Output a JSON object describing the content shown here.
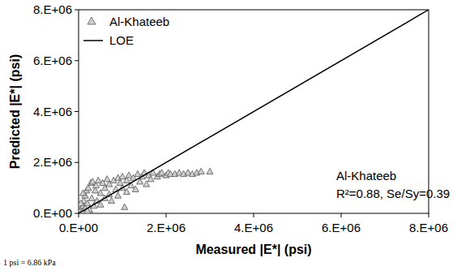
{
  "chart_data": {
    "type": "scatter",
    "x_label": "Measured |E*| (psi)",
    "y_label": "Predicted |E*| (psi)",
    "annotations": [
      "Al-Khateeb",
      "R²=0.88, Se/Sy=0.39"
    ],
    "footnote": "1 psi = 6.86 kPa",
    "xlim": [
      0,
      8000000
    ],
    "ylim": [
      0,
      8000000
    ],
    "xticks": [
      {
        "value": 0,
        "label": "0.E+00"
      },
      {
        "value": 2000000,
        "label": "2.E+06"
      },
      {
        "value": 4000000,
        "label": "4.E+06"
      },
      {
        "value": 6000000,
        "label": "6.E+06"
      },
      {
        "value": 8000000,
        "label": "8.E+06"
      }
    ],
    "yticks": [
      {
        "value": 0,
        "label": "0.E+00"
      },
      {
        "value": 2000000,
        "label": "2.E+06"
      },
      {
        "value": 4000000,
        "label": "4.E+06"
      },
      {
        "value": 6000000,
        "label": "6.E+06"
      },
      {
        "value": 8000000,
        "label": "8.E+06"
      }
    ],
    "grid": false,
    "legend": "top-left",
    "series": [
      {
        "name": "Al-Khateeb",
        "type": "scatter",
        "marker": "triangle",
        "color": "#d0d0d0",
        "x": [
          20000,
          50000,
          80000,
          100000,
          120000,
          150000,
          150000,
          180000,
          200000,
          220000,
          250000,
          280000,
          300000,
          320000,
          350000,
          380000,
          400000,
          420000,
          450000,
          500000,
          500000,
          550000,
          600000,
          600000,
          650000,
          700000,
          700000,
          750000,
          800000,
          850000,
          900000,
          900000,
          950000,
          1000000,
          1000000,
          1050000,
          1100000,
          1100000,
          1150000,
          1200000,
          1250000,
          1300000,
          1350000,
          1400000,
          1450000,
          1500000,
          1550000,
          1600000,
          1650000,
          1700000,
          1800000,
          1850000,
          1900000,
          2000000,
          2050000,
          2100000,
          2200000,
          2300000,
          2400000,
          2500000,
          2600000,
          2700000,
          2800000,
          3000000,
          50000,
          100000,
          200000
        ],
        "values": [
          50000,
          150000,
          100000,
          300000,
          500000,
          200000,
          700000,
          900000,
          400000,
          1000000,
          150000,
          1200000,
          600000,
          1250000,
          300000,
          900000,
          1100000,
          500000,
          1300000,
          800000,
          350000,
          1200000,
          1000000,
          600000,
          1350000,
          750000,
          1150000,
          500000,
          1300000,
          950000,
          1400000,
          700000,
          1200000,
          1000000,
          1450000,
          250000,
          850000,
          1300000,
          1500000,
          1100000,
          1400000,
          950000,
          1550000,
          1250000,
          1450000,
          1600000,
          1150000,
          1500000,
          1350000,
          1600000,
          1450000,
          1550000,
          1600000,
          1500000,
          1600000,
          1550000,
          1550000,
          1600000,
          1550000,
          1600000,
          1550000,
          1600000,
          1650000,
          1650000,
          400000,
          800000,
          100000
        ]
      },
      {
        "name": "LOE",
        "type": "line",
        "line_style": "solid",
        "color": "#000000",
        "x": [
          0,
          8000000
        ],
        "values": [
          0,
          8000000
        ]
      }
    ]
  }
}
